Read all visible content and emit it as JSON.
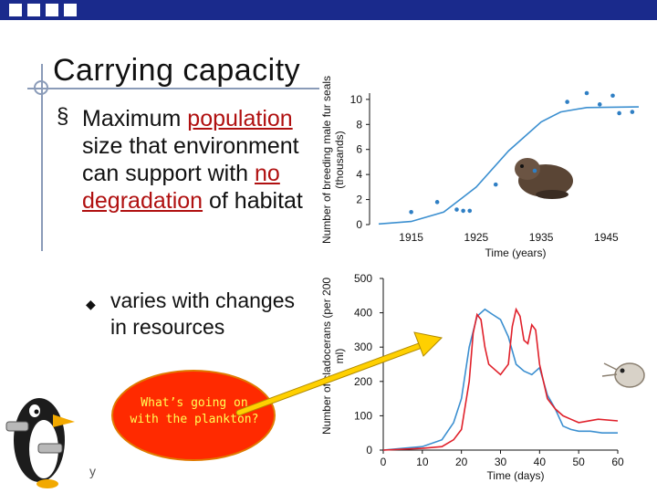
{
  "slide": {
    "title": "Carrying capacity",
    "bullet1_parts": [
      {
        "text": "Maximum ",
        "red": false
      },
      {
        "text": "population",
        "red": true
      },
      {
        "text": " size that environment can support with ",
        "red": false
      },
      {
        "text": "no degradation",
        "red": true
      },
      {
        "text": " of habitat",
        "red": false
      }
    ],
    "bullet2": "varies with changes in resources",
    "callout": "What’s going on with the plankton?",
    "footer": "y"
  },
  "colors": {
    "topbar": "#1a2a8c",
    "accent_red": "#b01010",
    "callout_fill": "#ff2a00",
    "callout_text": "#ffff55",
    "arrow": "#ffd000",
    "series_blue": "#3b8fd0",
    "series_red": "#e0202a",
    "points": "#2f7fc4"
  },
  "chart_data": [
    {
      "type": "scatter",
      "ylabel": "Number of breeding male fur seals (thousands)",
      "xlabel": "Time (years)",
      "xticks": [
        1915,
        1925,
        1935,
        1945
      ],
      "yticks": [
        0,
        2,
        4,
        6,
        8,
        10
      ],
      "xlim": [
        1910,
        1950
      ],
      "ylim": [
        0,
        10.5
      ],
      "points": {
        "x": [
          1915,
          1919,
          1922,
          1923,
          1924,
          1928,
          1934,
          1939,
          1942,
          1944,
          1946,
          1947,
          1949
        ],
        "y": [
          1.0,
          1.8,
          1.2,
          1.1,
          1.1,
          3.2,
          4.3,
          9.8,
          10.5,
          9.6,
          10.3,
          8.9,
          9.0
        ]
      },
      "curve": {
        "x": [
          1910,
          1915,
          1920,
          1925,
          1930,
          1935,
          1938,
          1942,
          1950
        ],
        "y": [
          0.05,
          0.25,
          1.0,
          3.0,
          5.9,
          8.2,
          9.0,
          9.35,
          9.4
        ]
      },
      "legend": "none",
      "grid": false
    },
    {
      "type": "line",
      "ylabel": "Number of cladocerans (per 200 ml)",
      "xlabel": "Time (days)",
      "xticks": [
        0,
        10,
        20,
        30,
        40,
        50,
        60
      ],
      "yticks": [
        0,
        100,
        200,
        300,
        400,
        500
      ],
      "xlim": [
        0,
        60
      ],
      "ylim": [
        0,
        500
      ],
      "series": [
        {
          "x": [
            0,
            5,
            10,
            15,
            18,
            20,
            22,
            24,
            26,
            28,
            30,
            32,
            34,
            36,
            38,
            40,
            42,
            44,
            46,
            48,
            50,
            53,
            56,
            60
          ],
          "y": [
            0,
            5,
            10,
            30,
            80,
            150,
            300,
            390,
            410,
            395,
            380,
            330,
            250,
            230,
            220,
            240,
            160,
            120,
            70,
            60,
            55,
            55,
            50,
            50
          ]
        },
        {
          "x": [
            0,
            10,
            15,
            18,
            20,
            22,
            23,
            24,
            25,
            26,
            27,
            28,
            30,
            32,
            33,
            34,
            35,
            36,
            37,
            38,
            39,
            40,
            42,
            44,
            46,
            48,
            50,
            55,
            60
          ],
          "y": [
            0,
            5,
            10,
            30,
            60,
            200,
            340,
            395,
            380,
            300,
            250,
            240,
            220,
            250,
            360,
            410,
            390,
            320,
            310,
            365,
            350,
            250,
            150,
            120,
            100,
            90,
            80,
            90,
            85
          ]
        }
      ],
      "legend": "none",
      "grid": false
    }
  ]
}
